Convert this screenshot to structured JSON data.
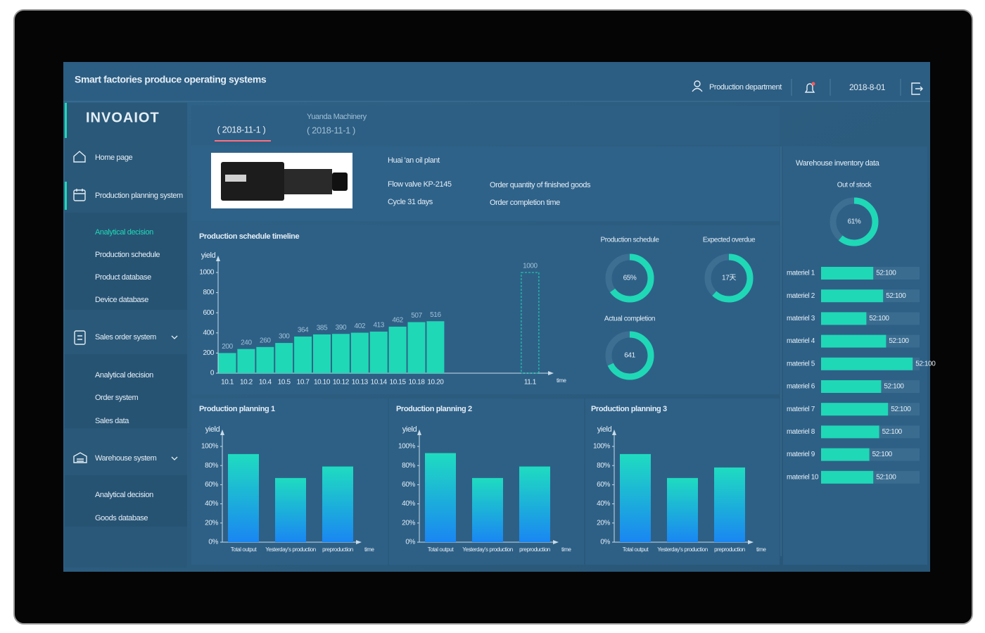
{
  "header": {
    "title": "Smart factories produce operating systems",
    "user": "Production department",
    "date": "2018-8-01"
  },
  "sidebar": {
    "logo": "INVOAIOT",
    "menu": [
      {
        "label": "Home page"
      },
      {
        "label": "Production planning system",
        "items": [
          "Analytical decision",
          "Production schedule",
          "Product database",
          "Device database"
        ]
      },
      {
        "label": "Sales order system",
        "items": [
          "Analytical decision",
          "Order system",
          "Sales data"
        ]
      },
      {
        "label": "Warehouse system",
        "items": [
          "Analytical decision",
          "Goods database"
        ]
      }
    ]
  },
  "tabs": [
    {
      "label": "( 2018-11-1 )"
    },
    {
      "company": "Yuanda Machinery",
      "label": "( 2018-11-1 )"
    }
  ],
  "product": {
    "plant": "Huai 'an oil plant",
    "model": "Flow valve KP-2145",
    "cycle": "Cycle 31 days",
    "order_quantity": "Order quantity of finished goods",
    "completion_time": "Order completion time"
  },
  "schedule": {
    "type": "bar",
    "title": "Production schedule timeline",
    "y_label": "yield",
    "x_label": "time",
    "categories": [
      "10.1",
      "10.2",
      "10.4",
      "10.5",
      "10.7",
      "10.10",
      "10.12",
      "10.13",
      "10.14",
      "10.15",
      "10.18",
      "10.20",
      null,
      null,
      null,
      null,
      "11.1"
    ],
    "values": [
      200,
      240,
      260,
      300,
      364,
      385,
      390,
      402,
      413,
      462,
      507,
      516,
      null,
      null,
      null,
      null,
      1000
    ],
    "color": "#1fd8b6",
    "ylim": [
      0,
      1000
    ],
    "yticks": [
      0,
      200,
      400,
      600,
      800,
      1000
    ]
  },
  "gauges": [
    {
      "title": "Production schedule",
      "center_text": "65%",
      "percent": 65
    },
    {
      "title": "Expected overdue",
      "center_text": "17天",
      "percent": 62
    },
    {
      "title": "Actual completion",
      "center_text": "641",
      "percent": 68
    }
  ],
  "planning": [
    {
      "type": "bar",
      "title": "Production planning 1",
      "y_label": "yield",
      "x_label": "time",
      "categories": [
        "Total output",
        "Yesterday's production",
        "preproduction"
      ],
      "values": [
        92,
        67,
        79
      ],
      "ylim": [
        0,
        100
      ],
      "yticks": [
        {
          "value": 0,
          "label": "0%"
        },
        {
          "value": 20,
          "label": "20%"
        },
        {
          "value": 40,
          "label": "40%"
        },
        {
          "value": 60,
          "label": "60%"
        },
        {
          "value": 80,
          "label": "80%"
        },
        {
          "value": 100,
          "label": "100%"
        }
      ]
    },
    {
      "type": "bar",
      "title": "Production planning 2",
      "y_label": "yield",
      "x_label": "time",
      "categories": [
        "Total output",
        "Yesterday's production",
        "preproduction"
      ],
      "values": [
        93,
        67,
        79
      ],
      "ylim": [
        0,
        100
      ],
      "yticks": [
        {
          "value": 0,
          "label": "0%"
        },
        {
          "value": 20,
          "label": "20%"
        },
        {
          "value": 40,
          "label": "40%"
        },
        {
          "value": 60,
          "label": "60%"
        },
        {
          "value": 80,
          "label": "80%"
        },
        {
          "value": 100,
          "label": "100%"
        }
      ]
    },
    {
      "type": "bar",
      "title": "Production planning 3",
      "y_label": "yield",
      "x_label": "time",
      "categories": [
        "Total output",
        "Yesterday's production",
        "preproduction"
      ],
      "values": [
        92,
        67,
        78
      ],
      "ylim": [
        0,
        100
      ],
      "yticks": [
        {
          "value": 0,
          "label": "0%"
        },
        {
          "value": 20,
          "label": "20%"
        },
        {
          "value": 40,
          "label": "40%"
        },
        {
          "value": 60,
          "label": "60%"
        },
        {
          "value": 80,
          "label": "80%"
        },
        {
          "value": 100,
          "label": "100%"
        }
      ]
    }
  ],
  "warehouse": {
    "title": "Warehouse inventory data",
    "gauge": {
      "title": "Out of stock",
      "center_text": "61%",
      "percent": 61
    },
    "xlim": [
      0,
      100
    ],
    "materials": [
      {
        "name": "materiel 1",
        "value": 53,
        "label": "52:100"
      },
      {
        "name": "materiel 2",
        "value": 63,
        "label": "52:100"
      },
      {
        "name": "materiel 3",
        "value": 46,
        "label": "52:100"
      },
      {
        "name": "materiel 4",
        "value": 66,
        "label": "52:100"
      },
      {
        "name": "materiel 5",
        "value": 93,
        "label": "52:100"
      },
      {
        "name": "materiel 6",
        "value": 61,
        "label": "52:100"
      },
      {
        "name": "materiel 7",
        "value": 68,
        "label": "52:100"
      },
      {
        "name": "materiel 8",
        "value": 59,
        "label": "52:100"
      },
      {
        "name": "materiel 9",
        "value": 49,
        "label": "52:100"
      },
      {
        "name": "materiel 10",
        "value": 53,
        "label": "52:100"
      }
    ]
  }
}
